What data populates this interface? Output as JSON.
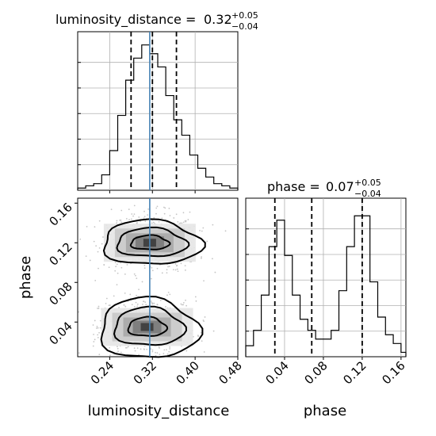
{
  "chart_data": [
    {
      "type": "histogram",
      "panel": "top-left",
      "title": {
        "prefix": "luminosity_distance = ",
        "value": "0.32",
        "plus": "+0.05",
        "minus": "−0.04"
      },
      "x_range": [
        0.18,
        0.48
      ],
      "bins": [
        0.18,
        0.195,
        0.21,
        0.225,
        0.24,
        0.255,
        0.27,
        0.285,
        0.3,
        0.315,
        0.33,
        0.345,
        0.36,
        0.375,
        0.39,
        0.405,
        0.42,
        0.435,
        0.45,
        0.465,
        0.48
      ],
      "counts": [
        1,
        2,
        3,
        7,
        18,
        34,
        50,
        60,
        66,
        62,
        56,
        43,
        32,
        25,
        16,
        10,
        6,
        3,
        2,
        1
      ],
      "y_max": 72,
      "quantiles": [
        0.28,
        0.32,
        0.365
      ],
      "truth": 0.315,
      "colors": {
        "line": "#000000",
        "truth": "#4682b4",
        "grid": "#b0b0b0"
      }
    },
    {
      "type": "histogram",
      "panel": "bottom-right",
      "title": {
        "prefix": "phase = ",
        "value": "0.07",
        "plus": "+0.05",
        "minus": "−0.04"
      },
      "x_range": [
        0.0,
        0.165
      ],
      "x_ticks": [
        "0.04",
        "0.08",
        "0.12",
        "0.16"
      ],
      "x_tick_values": [
        0.04,
        0.08,
        0.12,
        0.16
      ],
      "xlabel": "phase",
      "bins": [
        0.0,
        0.008,
        0.016,
        0.024,
        0.032,
        0.04,
        0.048,
        0.056,
        0.064,
        0.072,
        0.08,
        0.088,
        0.096,
        0.104,
        0.112,
        0.12,
        0.128,
        0.136,
        0.144,
        0.152,
        0.16,
        0.165
      ],
      "counts": [
        5,
        12,
        28,
        50,
        62,
        46,
        28,
        17,
        12,
        8,
        8,
        12,
        30,
        50,
        64,
        64,
        34,
        18,
        10,
        6,
        2
      ],
      "y_max": 72,
      "quantiles": [
        0.03,
        0.068,
        0.12
      ],
      "colors": {
        "line": "#000000",
        "grid": "#b0b0b0"
      }
    },
    {
      "type": "2d-density",
      "panel": "bottom-left",
      "x_range": [
        0.18,
        0.48
      ],
      "y_range": [
        0.005,
        0.165
      ],
      "x_ticks": [
        "0.24",
        "0.32",
        "0.40",
        "0.48"
      ],
      "x_tick_values": [
        0.24,
        0.32,
        0.4,
        0.48
      ],
      "y_ticks": [
        "0.04",
        "0.08",
        "0.12",
        "0.16"
      ],
      "y_tick_values": [
        0.04,
        0.08,
        0.12,
        0.16
      ],
      "xlabel": "luminosity_distance",
      "ylabel": "phase",
      "modes": [
        {
          "x": 0.315,
          "y": 0.12
        },
        {
          "x": 0.31,
          "y": 0.035
        }
      ],
      "truth_x": 0.315,
      "colors": {
        "contour": "#000000",
        "truth": "#4682b4",
        "scatter": "#808080"
      }
    }
  ]
}
